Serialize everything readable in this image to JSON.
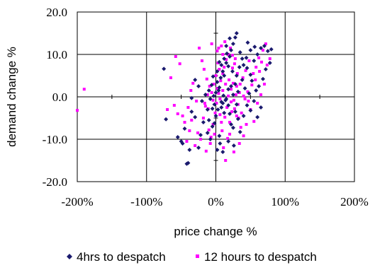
{
  "chart_data": {
    "type": "scatter",
    "title": "",
    "xlabel": "price change %",
    "ylabel": "demand change %",
    "xlim": [
      -2,
      2
    ],
    "ylim": [
      -20,
      20
    ],
    "x_ticks": [
      {
        "value": -2,
        "label": "-200%"
      },
      {
        "value": -1,
        "label": "-100%"
      },
      {
        "value": 0,
        "label": "0%"
      },
      {
        "value": 1,
        "label": "100%"
      },
      {
        "value": 2,
        "label": "200%"
      }
    ],
    "y_ticks": [
      {
        "value": 20,
        "label": "20.0"
      },
      {
        "value": 10,
        "label": "10.0"
      },
      {
        "value": 0,
        "label": "0.0"
      },
      {
        "value": -10,
        "label": "-10.0"
      },
      {
        "value": -20,
        "label": "-20.0"
      }
    ],
    "grid": "major lines on both axes",
    "legend_position": "bottom",
    "series": [
      {
        "name": "4hrs to despatch",
        "color": "#1a1a6e",
        "marker": "diamond",
        "points": [
          [
            -0.42,
            -15.8
          ],
          [
            -0.4,
            -15.6
          ],
          [
            -0.75,
            6.6
          ],
          [
            -0.72,
            -5.3
          ],
          [
            -0.55,
            -9.5
          ],
          [
            -0.48,
            -11
          ],
          [
            -0.35,
            -3.5
          ],
          [
            -0.3,
            -4.8
          ],
          [
            -0.25,
            -12
          ],
          [
            -0.18,
            -6
          ],
          [
            -0.12,
            -8.5
          ],
          [
            -0.1,
            -5.5
          ],
          [
            -0.08,
            -10
          ],
          [
            -0.05,
            -7
          ],
          [
            -0.02,
            -6.2
          ],
          [
            0,
            -4.5
          ],
          [
            0.03,
            -3
          ],
          [
            0.05,
            -9.2
          ],
          [
            0.08,
            -2.5
          ],
          [
            0.1,
            -1.5
          ],
          [
            0.12,
            -3.8
          ],
          [
            0.15,
            -0.5
          ],
          [
            0.18,
            -2
          ],
          [
            0.2,
            -4
          ],
          [
            0.22,
            -6.5
          ],
          [
            0.25,
            -7.3
          ],
          [
            0.28,
            -3.5
          ],
          [
            0.3,
            -1.8
          ],
          [
            0.32,
            -5.2
          ],
          [
            0.35,
            -8.3
          ],
          [
            0.4,
            -4.5
          ],
          [
            0.45,
            -2
          ],
          [
            0.5,
            -3.2
          ],
          [
            0.55,
            -1
          ],
          [
            0.6,
            -4.8
          ],
          [
            0.65,
            -2.5
          ],
          [
            -0.15,
            0.5
          ],
          [
            -0.1,
            1.5
          ],
          [
            -0.06,
            2.8
          ],
          [
            -0.03,
            0.2
          ],
          [
            0,
            1
          ],
          [
            0.02,
            3.5
          ],
          [
            0.05,
            2.2
          ],
          [
            0.07,
            4.5
          ],
          [
            0.1,
            6
          ],
          [
            0.12,
            5
          ],
          [
            0.15,
            8
          ],
          [
            0.18,
            7.2
          ],
          [
            0.2,
            9.5
          ],
          [
            0.22,
            11
          ],
          [
            0.25,
            12.5
          ],
          [
            0.28,
            14
          ],
          [
            0.3,
            15
          ],
          [
            0.2,
            13.8
          ],
          [
            0.15,
            12
          ],
          [
            0.35,
            10.5
          ],
          [
            0.38,
            9
          ],
          [
            0.4,
            7.5
          ],
          [
            0.45,
            6.8
          ],
          [
            0.5,
            5.2
          ],
          [
            0.55,
            8.5
          ],
          [
            0.6,
            10
          ],
          [
            0.65,
            11.5
          ],
          [
            0.7,
            12
          ],
          [
            0.75,
            10.8
          ],
          [
            0.8,
            11.2
          ],
          [
            0.78,
            8
          ],
          [
            0.72,
            6.5
          ],
          [
            0.68,
            4.2
          ],
          [
            0.62,
            2.5
          ],
          [
            0.58,
            1.5
          ],
          [
            0.52,
            3.8
          ],
          [
            0.48,
            0.8
          ],
          [
            0.42,
            2
          ],
          [
            0.38,
            4
          ],
          [
            0.32,
            1.2
          ],
          [
            0.28,
            3
          ],
          [
            0.25,
            0.5
          ],
          [
            0.22,
            2.5
          ],
          [
            0.18,
            1.8
          ],
          [
            0.14,
            -0.8
          ],
          [
            0.11,
            0.3
          ],
          [
            0.08,
            -1.2
          ],
          [
            0.04,
            1.5
          ],
          [
            -0.02,
            -1.8
          ],
          [
            -0.05,
            -2.8
          ],
          [
            -0.08,
            -0.5
          ],
          [
            -0.12,
            -3
          ],
          [
            -0.2,
            -1
          ],
          [
            -0.25,
            2.5
          ],
          [
            -0.3,
            4
          ],
          [
            -0.35,
            -0.3
          ],
          [
            -0.45,
            -7.5
          ],
          [
            -0.5,
            -10.5
          ],
          [
            -0.38,
            -12.5
          ],
          [
            -0.22,
            -9
          ],
          [
            0.02,
            -12.5
          ],
          [
            0.06,
            -11
          ],
          [
            0.1,
            -13
          ],
          [
            0.18,
            -10.5
          ],
          [
            0.26,
            -11.5
          ],
          [
            0.12,
            9
          ],
          [
            0.16,
            10.2
          ],
          [
            0.08,
            7.5
          ],
          [
            0.05,
            8.2
          ],
          [
            0.02,
            6
          ],
          [
            -0.04,
            4.8
          ],
          [
            0.24,
            6
          ],
          [
            0.3,
            5
          ],
          [
            0.34,
            7
          ],
          [
            0.44,
            9.2
          ],
          [
            0.5,
            11
          ],
          [
            0.56,
            11.8
          ],
          [
            0.46,
            12.8
          ]
        ]
      },
      {
        "name": "12 hours to despatch",
        "color": "#ff00ff",
        "marker": "square",
        "points": [
          [
            -2,
            -3.2
          ],
          [
            -1.9,
            1.8
          ],
          [
            -0.7,
            -3
          ],
          [
            -0.65,
            4.5
          ],
          [
            -0.58,
            9.5
          ],
          [
            -0.52,
            7.8
          ],
          [
            -0.48,
            -4.5
          ],
          [
            -0.45,
            -6
          ],
          [
            -0.4,
            -2.5
          ],
          [
            -0.36,
            1.5
          ],
          [
            -0.33,
            3.2
          ],
          [
            -0.28,
            -1
          ],
          [
            -0.26,
            -8.5
          ],
          [
            -0.22,
            -10
          ],
          [
            -0.18,
            -5
          ],
          [
            -0.15,
            -2.2
          ],
          [
            -0.12,
            0.5
          ],
          [
            -0.1,
            -7.8
          ],
          [
            -0.07,
            -9.5
          ],
          [
            -0.04,
            -6.5
          ],
          [
            -0.01,
            -3.8
          ],
          [
            0.01,
            -1.5
          ],
          [
            0.04,
            0.8
          ],
          [
            0.06,
            -4.2
          ],
          [
            0.09,
            -8
          ],
          [
            0.11,
            -12
          ],
          [
            0.14,
            -15
          ],
          [
            0.17,
            -9.8
          ],
          [
            0.2,
            -6
          ],
          [
            0.23,
            -3.5
          ],
          [
            0.26,
            -0.8
          ],
          [
            0.3,
            2.5
          ],
          [
            0.33,
            -5
          ],
          [
            0.36,
            -7.2
          ],
          [
            0.4,
            -9.2
          ],
          [
            0.44,
            -6.5
          ],
          [
            0.5,
            -3
          ],
          [
            0.55,
            -5.8
          ],
          [
            0.6,
            -1.5
          ],
          [
            0.65,
            0.5
          ],
          [
            0.7,
            3
          ],
          [
            0.72,
            12.5
          ],
          [
            0.68,
            11
          ],
          [
            0.62,
            9.2
          ],
          [
            0.58,
            7
          ],
          [
            0.54,
            5.5
          ],
          [
            0.48,
            8.5
          ],
          [
            0.43,
            6.2
          ],
          [
            0.39,
            4.5
          ],
          [
            0.35,
            3
          ],
          [
            0.31,
            5.5
          ],
          [
            0.27,
            7.8
          ],
          [
            0.24,
            9.8
          ],
          [
            0.21,
            11.5
          ],
          [
            0.18,
            10
          ],
          [
            0.15,
            8.8
          ],
          [
            0.12,
            7
          ],
          [
            0.1,
            5.5
          ],
          [
            0.07,
            3.8
          ],
          [
            0.05,
            6.5
          ],
          [
            0.03,
            8
          ],
          [
            0,
            5
          ],
          [
            -0.03,
            3
          ],
          [
            -0.06,
            1
          ],
          [
            -0.09,
            2.5
          ],
          [
            -0.13,
            4.2
          ],
          [
            -0.17,
            6.5
          ],
          [
            -0.2,
            8.5
          ],
          [
            -0.24,
            11.5
          ],
          [
            -0.06,
            12.5
          ],
          [
            0.02,
            10.8
          ],
          [
            0.08,
            12
          ],
          [
            0.13,
            13
          ],
          [
            0.19,
            4
          ],
          [
            0.22,
            1.8
          ],
          [
            0.25,
            3.2
          ],
          [
            0.29,
            0.5
          ],
          [
            0.32,
            -1.8
          ],
          [
            0.37,
            -3.8
          ],
          [
            0.42,
            -0.5
          ],
          [
            0.46,
            1.2
          ],
          [
            0.52,
            2.8
          ],
          [
            0.57,
            4
          ],
          [
            0.63,
            6
          ],
          [
            0.66,
            8.2
          ],
          [
            0.74,
            7.5
          ],
          [
            0.78,
            9
          ],
          [
            0.16,
            -2.5
          ],
          [
            0.13,
            -4.8
          ],
          [
            0.08,
            -6
          ],
          [
            -0.02,
            -8.8
          ],
          [
            -0.08,
            -11
          ],
          [
            -0.14,
            -12.8
          ],
          [
            -0.3,
            -11.5
          ],
          [
            -0.38,
            -8
          ],
          [
            -0.42,
            -10.5
          ],
          [
            -0.55,
            -4
          ],
          [
            -0.6,
            -2
          ],
          [
            -0.35,
            -5.5
          ],
          [
            0.02,
            2
          ],
          [
            0.06,
            -0.5
          ],
          [
            0.1,
            1.5
          ],
          [
            0.14,
            3
          ],
          [
            0.18,
            0.2
          ],
          [
            0.22,
            -1.2
          ],
          [
            0.27,
            -2.8
          ],
          [
            -0.04,
            -0.8
          ],
          [
            -0.11,
            -2.8
          ],
          [
            -0.16,
            -1.5
          ],
          [
            0.34,
            1
          ],
          [
            0.4,
            0.2
          ],
          [
            0.47,
            -1
          ],
          [
            0.3,
            -4.5
          ],
          [
            0.2,
            -8.8
          ],
          [
            0.26,
            -13
          ],
          [
            0.34,
            -11
          ],
          [
            0.24,
            6.8
          ],
          [
            0.28,
            9
          ],
          [
            0.1,
            10
          ],
          [
            0.04,
            11.5
          ]
        ]
      }
    ]
  }
}
